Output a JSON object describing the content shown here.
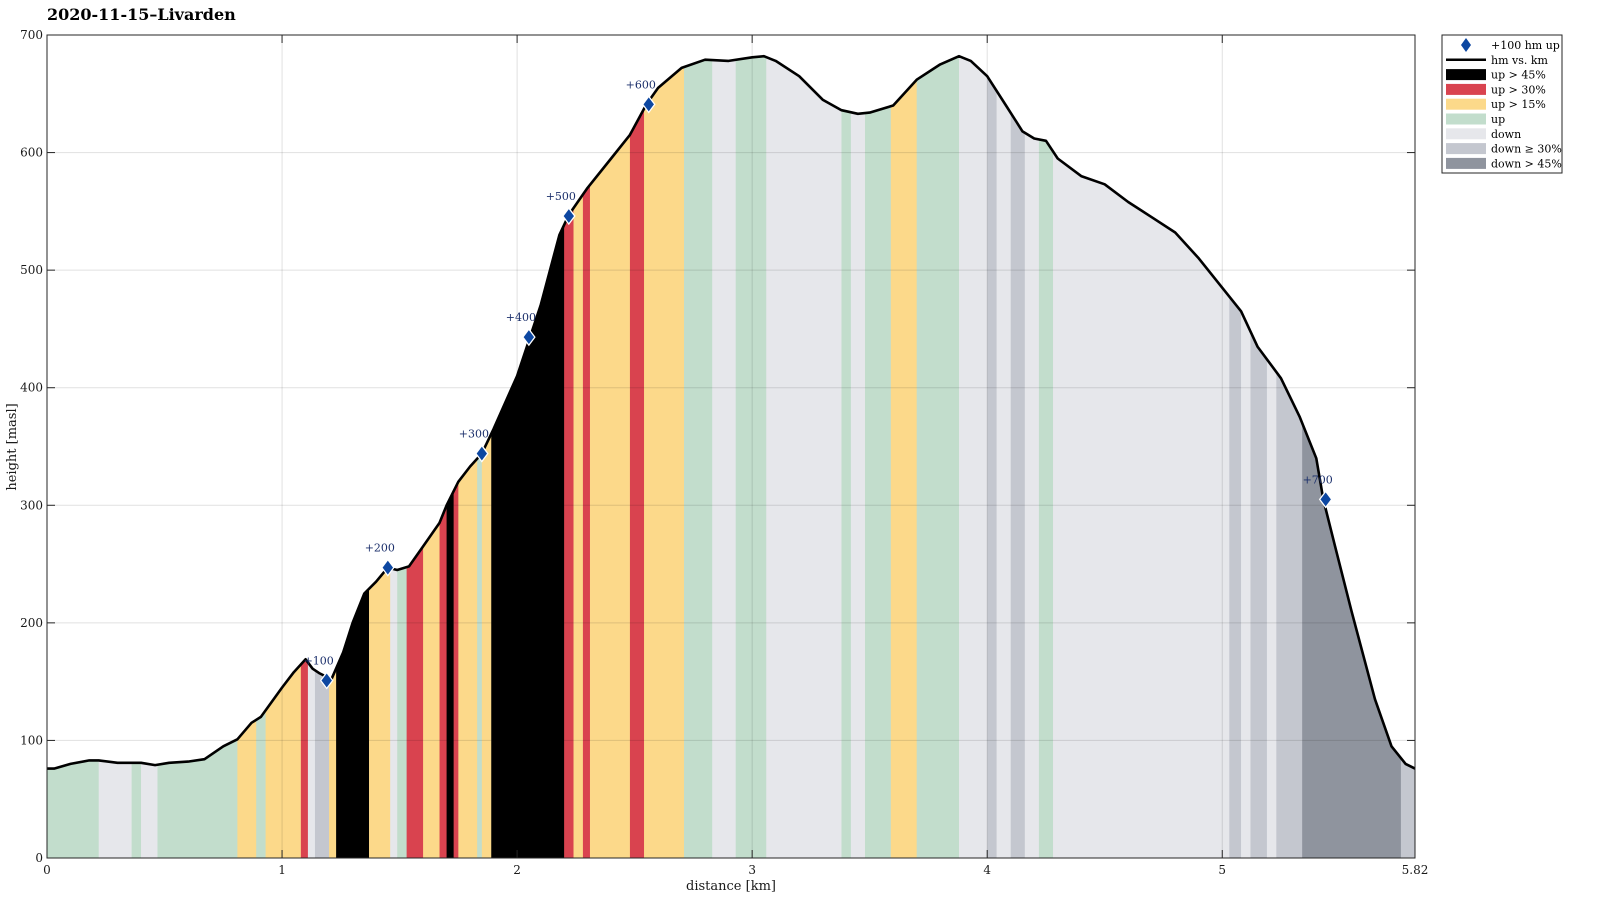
{
  "chart_data": {
    "type": "area",
    "title": "2020-11-15–Livarden",
    "xlabel": "distance [km]",
    "ylabel": "height [masl]",
    "xlim": [
      0,
      5.82
    ],
    "ylim": [
      0,
      700
    ],
    "xticks": [
      {
        "value": 0,
        "label": "0"
      },
      {
        "value": 1,
        "label": "1"
      },
      {
        "value": 2,
        "label": "2"
      },
      {
        "value": 3,
        "label": "3"
      },
      {
        "value": 4,
        "label": "4"
      },
      {
        "value": 5,
        "label": "5"
      },
      {
        "value": 5.82,
        "label": "5.82"
      }
    ],
    "yticks": [
      0,
      100,
      200,
      300,
      400,
      500,
      600,
      700
    ],
    "grid": true,
    "legend_position": "outside-top-right",
    "legend": [
      {
        "key": "marker",
        "label": "+100 hm up",
        "color": "#0d47a1"
      },
      {
        "key": "line",
        "label": "hm vs. km",
        "color": "#000000"
      },
      {
        "key": "up45",
        "label": "up > 45%",
        "color": "#000000"
      },
      {
        "key": "up30",
        "label": "up > 30%",
        "color": "#d9434f"
      },
      {
        "key": "up15",
        "label": "up > 15%",
        "color": "#fcd98a"
      },
      {
        "key": "up",
        "label": "up",
        "color": "#c2ddcc"
      },
      {
        "key": "down",
        "label": "down",
        "color": "#e6e7eb"
      },
      {
        "key": "down30",
        "label": "down ≥ 30%",
        "color": "#c4c7cf"
      },
      {
        "key": "down45",
        "label": "down > 45%",
        "color": "#8f949e"
      }
    ],
    "profile": [
      [
        0,
        76
      ],
      [
        0.03,
        76
      ],
      [
        0.1,
        80
      ],
      [
        0.18,
        83
      ],
      [
        0.22,
        83
      ],
      [
        0.3,
        81
      ],
      [
        0.4,
        81
      ],
      [
        0.46,
        79
      ],
      [
        0.52,
        81
      ],
      [
        0.6,
        82
      ],
      [
        0.67,
        84
      ],
      [
        0.75,
        95
      ],
      [
        0.81,
        101
      ],
      [
        0.87,
        115
      ],
      [
        0.91,
        120
      ],
      [
        1.0,
        145
      ],
      [
        1.05,
        158
      ],
      [
        1.1,
        169
      ],
      [
        1.13,
        161
      ],
      [
        1.16,
        157
      ],
      [
        1.21,
        152
      ],
      [
        1.26,
        175
      ],
      [
        1.3,
        200
      ],
      [
        1.35,
        225
      ],
      [
        1.4,
        235
      ],
      [
        1.45,
        247
      ],
      [
        1.49,
        245
      ],
      [
        1.54,
        248
      ],
      [
        1.6,
        265
      ],
      [
        1.67,
        285
      ],
      [
        1.7,
        300
      ],
      [
        1.75,
        320
      ],
      [
        1.8,
        333
      ],
      [
        1.85,
        344
      ],
      [
        1.9,
        365
      ],
      [
        2.0,
        410
      ],
      [
        2.1,
        470
      ],
      [
        2.18,
        530
      ],
      [
        2.22,
        547
      ],
      [
        2.3,
        570
      ],
      [
        2.4,
        595
      ],
      [
        2.48,
        615
      ],
      [
        2.55,
        641
      ],
      [
        2.6,
        655
      ],
      [
        2.7,
        672
      ],
      [
        2.8,
        679
      ],
      [
        2.9,
        678
      ],
      [
        3.0,
        681
      ],
      [
        3.05,
        682
      ],
      [
        3.1,
        678
      ],
      [
        3.2,
        665
      ],
      [
        3.3,
        645
      ],
      [
        3.38,
        636
      ],
      [
        3.45,
        633
      ],
      [
        3.5,
        634
      ],
      [
        3.6,
        640
      ],
      [
        3.7,
        662
      ],
      [
        3.8,
        675
      ],
      [
        3.88,
        682
      ],
      [
        3.93,
        678
      ],
      [
        4.0,
        665
      ],
      [
        4.08,
        640
      ],
      [
        4.15,
        618
      ],
      [
        4.2,
        612
      ],
      [
        4.25,
        610
      ],
      [
        4.3,
        595
      ],
      [
        4.4,
        580
      ],
      [
        4.5,
        573
      ],
      [
        4.6,
        558
      ],
      [
        4.7,
        545
      ],
      [
        4.8,
        532
      ],
      [
        4.9,
        510
      ],
      [
        5.0,
        485
      ],
      [
        5.08,
        465
      ],
      [
        5.15,
        435
      ],
      [
        5.25,
        408
      ],
      [
        5.33,
        375
      ],
      [
        5.4,
        340
      ],
      [
        5.43,
        305
      ],
      [
        5.48,
        265
      ],
      [
        5.55,
        210
      ],
      [
        5.65,
        135
      ],
      [
        5.72,
        95
      ],
      [
        5.78,
        80
      ],
      [
        5.82,
        76
      ]
    ],
    "segments": [
      {
        "x0": 0,
        "x1": 0.22,
        "type": "up"
      },
      {
        "x0": 0.22,
        "x1": 0.36,
        "type": "down"
      },
      {
        "x0": 0.36,
        "x1": 0.4,
        "type": "up"
      },
      {
        "x0": 0.4,
        "x1": 0.47,
        "type": "down"
      },
      {
        "x0": 0.47,
        "x1": 0.81,
        "type": "up"
      },
      {
        "x0": 0.81,
        "x1": 0.89,
        "type": "up15"
      },
      {
        "x0": 0.89,
        "x1": 0.93,
        "type": "up"
      },
      {
        "x0": 0.93,
        "x1": 1.08,
        "type": "up15"
      },
      {
        "x0": 1.08,
        "x1": 1.11,
        "type": "up30"
      },
      {
        "x0": 1.11,
        "x1": 1.14,
        "type": "down"
      },
      {
        "x0": 1.14,
        "x1": 1.2,
        "type": "down30"
      },
      {
        "x0": 1.2,
        "x1": 1.23,
        "type": "up15"
      },
      {
        "x0": 1.23,
        "x1": 1.37,
        "type": "up45"
      },
      {
        "x0": 1.37,
        "x1": 1.46,
        "type": "up15"
      },
      {
        "x0": 1.46,
        "x1": 1.49,
        "type": "down"
      },
      {
        "x0": 1.49,
        "x1": 1.53,
        "type": "up"
      },
      {
        "x0": 1.53,
        "x1": 1.6,
        "type": "up30"
      },
      {
        "x0": 1.6,
        "x1": 1.67,
        "type": "up15"
      },
      {
        "x0": 1.67,
        "x1": 1.7,
        "type": "up30"
      },
      {
        "x0": 1.7,
        "x1": 1.73,
        "type": "up45"
      },
      {
        "x0": 1.73,
        "x1": 1.75,
        "type": "up30"
      },
      {
        "x0": 1.75,
        "x1": 1.83,
        "type": "up15"
      },
      {
        "x0": 1.83,
        "x1": 1.85,
        "type": "up"
      },
      {
        "x0": 1.85,
        "x1": 1.89,
        "type": "up15"
      },
      {
        "x0": 1.89,
        "x1": 2.2,
        "type": "up45"
      },
      {
        "x0": 2.2,
        "x1": 2.24,
        "type": "up30"
      },
      {
        "x0": 2.24,
        "x1": 2.28,
        "type": "up15"
      },
      {
        "x0": 2.28,
        "x1": 2.31,
        "type": "up30"
      },
      {
        "x0": 2.31,
        "x1": 2.48,
        "type": "up15"
      },
      {
        "x0": 2.48,
        "x1": 2.54,
        "type": "up30"
      },
      {
        "x0": 2.54,
        "x1": 2.71,
        "type": "up15"
      },
      {
        "x0": 2.71,
        "x1": 2.83,
        "type": "up"
      },
      {
        "x0": 2.83,
        "x1": 2.93,
        "type": "down"
      },
      {
        "x0": 2.93,
        "x1": 3.06,
        "type": "up"
      },
      {
        "x0": 3.06,
        "x1": 3.38,
        "type": "down"
      },
      {
        "x0": 3.38,
        "x1": 3.42,
        "type": "up"
      },
      {
        "x0": 3.42,
        "x1": 3.48,
        "type": "down"
      },
      {
        "x0": 3.48,
        "x1": 3.59,
        "type": "up"
      },
      {
        "x0": 3.59,
        "x1": 3.7,
        "type": "up15"
      },
      {
        "x0": 3.7,
        "x1": 3.88,
        "type": "up"
      },
      {
        "x0": 3.88,
        "x1": 4.0,
        "type": "down"
      },
      {
        "x0": 4.0,
        "x1": 4.04,
        "type": "down30"
      },
      {
        "x0": 4.04,
        "x1": 4.1,
        "type": "down"
      },
      {
        "x0": 4.1,
        "x1": 4.16,
        "type": "down30"
      },
      {
        "x0": 4.16,
        "x1": 4.22,
        "type": "down"
      },
      {
        "x0": 4.22,
        "x1": 4.28,
        "type": "up"
      },
      {
        "x0": 4.28,
        "x1": 5.03,
        "type": "down"
      },
      {
        "x0": 5.03,
        "x1": 5.08,
        "type": "down30"
      },
      {
        "x0": 5.08,
        "x1": 5.12,
        "type": "down"
      },
      {
        "x0": 5.12,
        "x1": 5.19,
        "type": "down30"
      },
      {
        "x0": 5.19,
        "x1": 5.23,
        "type": "down"
      },
      {
        "x0": 5.23,
        "x1": 5.34,
        "type": "down30"
      },
      {
        "x0": 5.34,
        "x1": 5.76,
        "type": "down45"
      },
      {
        "x0": 5.76,
        "x1": 5.82,
        "type": "down30"
      }
    ],
    "markers": [
      {
        "x": 1.19,
        "y": 151,
        "label": "+100"
      },
      {
        "x": 1.45,
        "y": 247,
        "label": "+200"
      },
      {
        "x": 1.85,
        "y": 344,
        "label": "+300"
      },
      {
        "x": 2.05,
        "y": 443,
        "label": "+400"
      },
      {
        "x": 2.22,
        "y": 546,
        "label": "+500"
      },
      {
        "x": 2.56,
        "y": 641,
        "label": "+600"
      },
      {
        "x": 5.44,
        "y": 305,
        "label": "+700"
      }
    ]
  }
}
